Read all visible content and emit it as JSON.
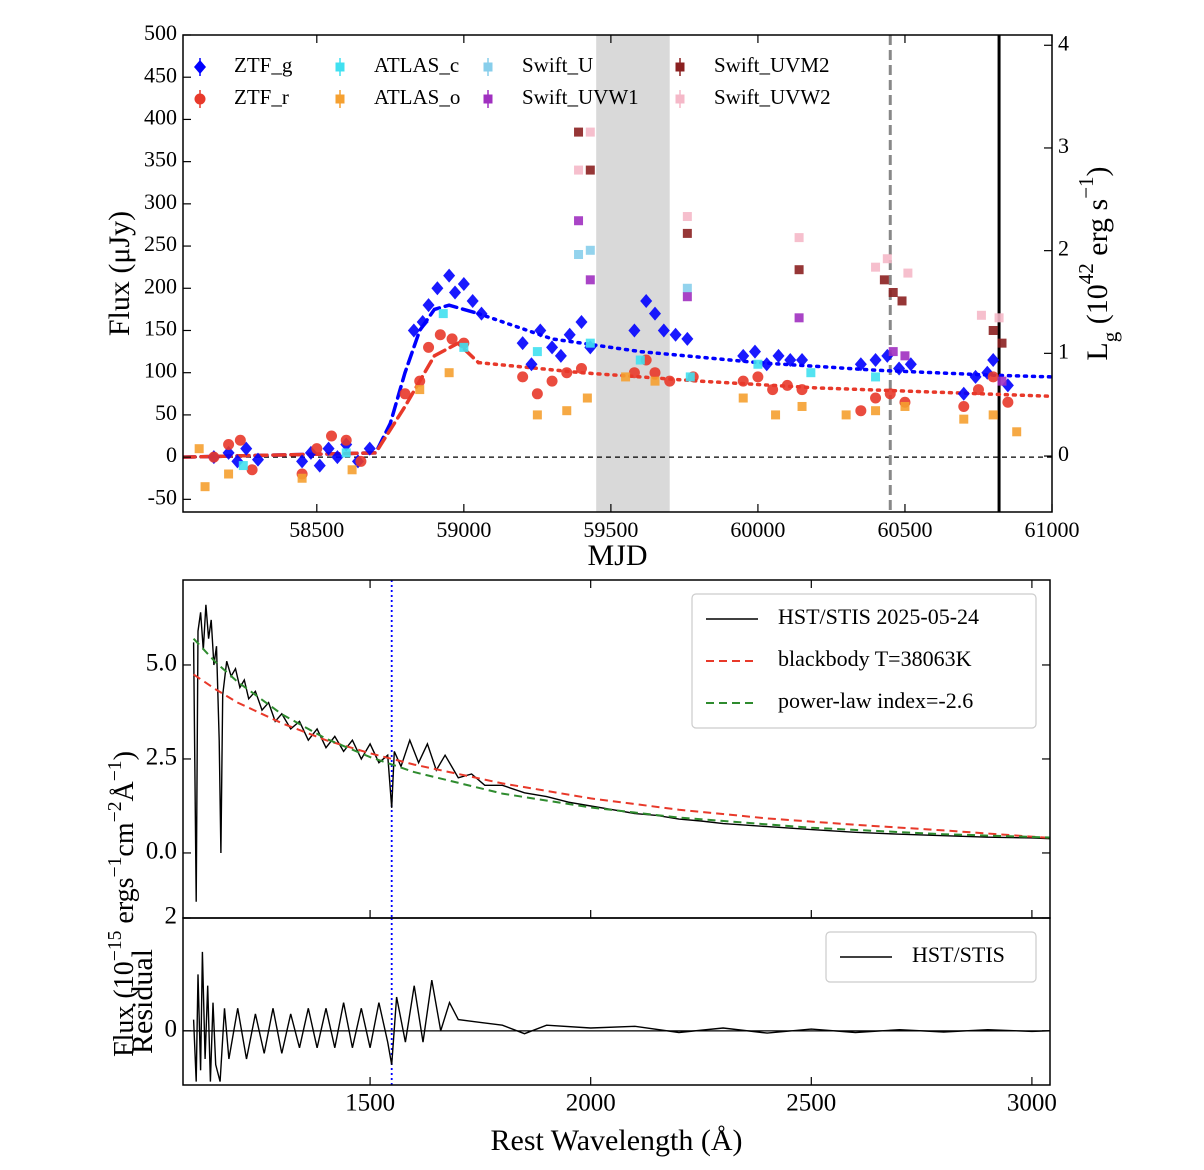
{
  "chart_data": [
    {
      "type": "scatter",
      "xlabel": "MJD",
      "ylabel": "Flux (μJy)",
      "y2label": [
        {
          "text": "L"
        },
        {
          "text": "g",
          "shift": "sub"
        },
        {
          "text": " (10"
        },
        {
          "text": "42",
          "shift": "super"
        },
        {
          "text": " erg s"
        },
        {
          "text": "−1",
          "shift": "super"
        },
        {
          "text": ")"
        }
      ],
      "xlim": [
        58045,
        61000
      ],
      "xticks": [
        58500,
        59000,
        59500,
        60000,
        60500,
        61000
      ],
      "ylim": [
        -65,
        500
      ],
      "yticks": [
        -50,
        0,
        50,
        100,
        150,
        200,
        250,
        300,
        350,
        400,
        450,
        500
      ],
      "y2lim": [
        -0.545,
        4.1
      ],
      "y2ticks": [
        0,
        1,
        2,
        3,
        4
      ],
      "hline": 0,
      "shaded_region": [
        59450,
        59700
      ],
      "vlines": [
        {
          "x": 60450,
          "color": "#888888",
          "style": "dashed"
        },
        {
          "x": 60820,
          "color": "#000000",
          "style": "solid"
        }
      ],
      "legend": "upper left",
      "legend_ncol": 4,
      "series": [
        {
          "name": "ZTF_g",
          "color": "#0000ff",
          "marker": "diamond",
          "x": [
            58150,
            58200,
            58230,
            58260,
            58300,
            58450,
            58480,
            58510,
            58540,
            58570,
            58600,
            58640,
            58680,
            58830,
            58860,
            58880,
            58910,
            58950,
            58970,
            59000,
            59030,
            59060,
            59200,
            59230,
            59260,
            59300,
            59330,
            59360,
            59400,
            59430,
            59580,
            59620,
            59650,
            59680,
            59720,
            59760,
            59950,
            59990,
            60030,
            60070,
            60110,
            60150,
            60350,
            60400,
            60440,
            60480,
            60520,
            60700,
            60740,
            60780,
            60800,
            60850
          ],
          "values": [
            0,
            5,
            -5,
            10,
            -3,
            -5,
            5,
            -10,
            10,
            0,
            15,
            -5,
            10,
            150,
            160,
            180,
            200,
            215,
            195,
            205,
            185,
            170,
            135,
            110,
            150,
            130,
            120,
            145,
            160,
            130,
            150,
            185,
            170,
            150,
            145,
            140,
            120,
            125,
            110,
            120,
            115,
            115,
            110,
            115,
            120,
            105,
            110,
            75,
            95,
            100,
            115,
            85
          ]
        },
        {
          "name": "ZTF_r",
          "color": "#e8392a",
          "marker": "circle",
          "x": [
            58150,
            58200,
            58240,
            58280,
            58450,
            58500,
            58550,
            58600,
            58650,
            58800,
            58850,
            58880,
            58920,
            58960,
            59000,
            59200,
            59250,
            59300,
            59350,
            59400,
            59580,
            59620,
            59650,
            59700,
            59780,
            59950,
            60000,
            60050,
            60100,
            60150,
            60350,
            60400,
            60450,
            60500,
            60700,
            60750,
            60800,
            60850
          ],
          "values": [
            0,
            15,
            20,
            -15,
            -20,
            10,
            25,
            20,
            -5,
            75,
            90,
            130,
            145,
            140,
            135,
            95,
            75,
            90,
            100,
            105,
            100,
            115,
            100,
            90,
            95,
            90,
            95,
            80,
            85,
            80,
            55,
            70,
            75,
            65,
            60,
            80,
            95,
            65
          ]
        },
        {
          "name": "ATLAS_c",
          "color": "#40e0f0",
          "marker": "square",
          "x": [
            58250,
            58600,
            58930,
            59000,
            59250,
            59430,
            59600,
            59770,
            60000,
            60180,
            60400
          ],
          "values": [
            -10,
            5,
            170,
            130,
            125,
            135,
            115,
            95,
            110,
            100,
            95
          ]
        },
        {
          "name": "ATLAS_o",
          "color": "#f5a030",
          "marker": "square",
          "x": [
            58100,
            58120,
            58200,
            58450,
            58620,
            58850,
            58950,
            59250,
            59350,
            59420,
            59550,
            59650,
            59950,
            60060,
            60150,
            60300,
            60400,
            60500,
            60700,
            60800,
            60880
          ],
          "values": [
            10,
            -35,
            -20,
            -25,
            -15,
            80,
            100,
            50,
            55,
            70,
            95,
            90,
            70,
            50,
            60,
            50,
            55,
            60,
            45,
            50,
            30
          ]
        },
        {
          "name": "Swift_U",
          "color": "#87ceeb",
          "marker": "square",
          "x": [
            59390,
            59430,
            59760
          ],
          "values": [
            240,
            245,
            200
          ]
        },
        {
          "name": "Swift_UVW1",
          "color": "#a030c0",
          "marker": "square",
          "x": [
            59390,
            59430,
            59760,
            60140,
            60460,
            60500,
            60830
          ],
          "values": [
            280,
            210,
            190,
            165,
            125,
            120,
            90
          ]
        },
        {
          "name": "Swift_UVM2",
          "color": "#8b2020",
          "marker": "square",
          "x": [
            59390,
            59430,
            59760,
            60140,
            60430,
            60460,
            60490,
            60800,
            60830
          ],
          "values": [
            385,
            340,
            265,
            222,
            210,
            195,
            185,
            150,
            135
          ]
        },
        {
          "name": "Swift_UVW2",
          "color": "#f5b8c8",
          "marker": "square",
          "x": [
            59390,
            59430,
            59760,
            60140,
            60400,
            60440,
            60510,
            60760,
            60820
          ],
          "values": [
            340,
            385,
            285,
            260,
            225,
            235,
            218,
            168,
            165
          ]
        }
      ],
      "fits": [
        {
          "color": "#0000ff",
          "style": "dashed",
          "x": [
            58045,
            58700,
            58750,
            58800,
            58850,
            58900,
            58950,
            59050
          ],
          "values": [
            0,
            5,
            40,
            100,
            150,
            175,
            180,
            170
          ]
        },
        {
          "color": "#0000ff",
          "style": "dotted",
          "x": [
            59050,
            59300,
            59600,
            60000,
            60400,
            60800,
            61000
          ],
          "values": [
            170,
            140,
            125,
            112,
            103,
            97,
            95
          ]
        },
        {
          "color": "#e8392a",
          "style": "dashed",
          "x": [
            58045,
            58700,
            58800,
            58900,
            58980,
            59050
          ],
          "values": [
            0,
            5,
            60,
            120,
            135,
            112
          ]
        },
        {
          "color": "#e8392a",
          "style": "dotted",
          "x": [
            59050,
            59400,
            59800,
            60200,
            60600,
            61000
          ],
          "values": [
            112,
            100,
            90,
            82,
            77,
            72
          ]
        }
      ]
    },
    {
      "type": "line",
      "ylabel": [
        {
          "text": "Flux (10"
        },
        {
          "text": "−15",
          "shift": "super"
        },
        {
          "text": " ergs"
        },
        {
          "text": "−1",
          "shift": "super"
        },
        {
          "text": "cm"
        },
        {
          "text": "−2",
          "shift": "super"
        },
        {
          "text": "Å"
        },
        {
          "text": "−1",
          "shift": "super"
        },
        {
          "text": ")"
        }
      ],
      "xlim": [
        1076,
        3041
      ],
      "ylim": [
        -1.73,
        7.26
      ],
      "yticks": [
        {
          "value": 0,
          "label": "0.0"
        },
        2.5,
        {
          "value": 5,
          "label": "5.0"
        }
      ],
      "vline": 1549,
      "vline_color": "#0000ff",
      "legend": "upper right",
      "series": [
        {
          "name": "HST/STIS 2025-05-24",
          "color": "#000000",
          "style": "solid",
          "x": [
            1100,
            1106,
            1110,
            1116,
            1122,
            1128,
            1134,
            1140,
            1146,
            1152,
            1158,
            1162,
            1166,
            1175,
            1185,
            1195,
            1205,
            1215,
            1225,
            1240,
            1255,
            1270,
            1285,
            1300,
            1320,
            1340,
            1360,
            1380,
            1400,
            1420,
            1440,
            1460,
            1480,
            1500,
            1520,
            1540,
            1549,
            1555,
            1570,
            1590,
            1610,
            1630,
            1650,
            1670,
            1700,
            1730,
            1760,
            1800,
            1850,
            1900,
            1950,
            2000,
            2050,
            2100,
            2150,
            2200,
            2250,
            2300,
            2400,
            2500,
            2600,
            2700,
            2800,
            2900,
            3000,
            3040
          ],
          "values": [
            5.6,
            -1.3,
            5.9,
            6.4,
            5.4,
            6.6,
            5.7,
            6.2,
            5.0,
            5.5,
            3.0,
            0.0,
            4.2,
            5.1,
            4.7,
            4.9,
            4.4,
            4.6,
            4.1,
            4.3,
            3.8,
            4.0,
            3.5,
            3.7,
            3.3,
            3.5,
            3.0,
            3.3,
            2.8,
            3.1,
            2.7,
            3.0,
            2.5,
            2.9,
            2.4,
            2.6,
            1.2,
            2.7,
            2.3,
            3.0,
            2.4,
            2.9,
            2.2,
            2.6,
            2.0,
            2.1,
            1.8,
            1.8,
            1.6,
            1.5,
            1.35,
            1.25,
            1.15,
            1.05,
            1.0,
            0.9,
            0.85,
            0.78,
            0.7,
            0.62,
            0.55,
            0.5,
            0.46,
            0.42,
            0.4,
            0.38
          ]
        },
        {
          "name": "blackbody T=38063K",
          "color": "#e8392a",
          "style": "dashed",
          "x": [
            1100,
            1150,
            1200,
            1300,
            1400,
            1500,
            1600,
            1700,
            1800,
            2000,
            2200,
            2400,
            2600,
            2800,
            3040
          ],
          "values": [
            4.75,
            4.35,
            4.0,
            3.45,
            3.0,
            2.65,
            2.35,
            2.1,
            1.85,
            1.45,
            1.15,
            0.92,
            0.75,
            0.6,
            0.4
          ]
        },
        {
          "name": "power-law index=-2.6",
          "color": "#2e8b2e",
          "style": "dashed",
          "x": [
            1100,
            1150,
            1200,
            1300,
            1400,
            1500,
            1600,
            1800,
            2000,
            2200,
            2500,
            2800,
            3040
          ],
          "values": [
            5.7,
            5.07,
            4.55,
            3.69,
            3.04,
            2.55,
            2.15,
            1.58,
            1.21,
            0.94,
            0.67,
            0.5,
            0.41
          ]
        }
      ]
    },
    {
      "type": "line",
      "xlabel": "Rest Wavelength (Å)",
      "ylabel": "Residual",
      "xlim": [
        1076,
        3041
      ],
      "xticks": [
        1500,
        2000,
        2500,
        3000
      ],
      "ylim": [
        -0.96,
        2
      ],
      "yticks": [
        0,
        2
      ],
      "hline": 0,
      "vline": 1549,
      "vline_color": "#0000ff",
      "legend": "upper right",
      "series": [
        {
          "name": "HST/STIS",
          "color": "#000000",
          "style": "solid",
          "x": [
            1100,
            1106,
            1110,
            1116,
            1120,
            1126,
            1132,
            1138,
            1144,
            1150,
            1160,
            1170,
            1180,
            1200,
            1220,
            1240,
            1260,
            1280,
            1300,
            1320,
            1340,
            1360,
            1380,
            1400,
            1420,
            1440,
            1460,
            1480,
            1500,
            1520,
            1540,
            1549,
            1560,
            1580,
            1600,
            1620,
            1640,
            1660,
            1680,
            1700,
            1750,
            1800,
            1850,
            1900,
            2000,
            2100,
            2200,
            2300,
            2400,
            2500,
            2600,
            2700,
            2800,
            2900,
            3000,
            3040
          ],
          "values": [
            0.2,
            -0.9,
            1.0,
            -0.7,
            1.4,
            -0.5,
            0.8,
            -0.9,
            0.5,
            -0.6,
            -0.9,
            0.4,
            -0.5,
            0.4,
            -0.5,
            0.3,
            -0.4,
            0.4,
            -0.4,
            0.3,
            -0.3,
            0.4,
            -0.3,
            0.4,
            -0.3,
            0.5,
            -0.3,
            0.4,
            -0.3,
            0.5,
            -0.2,
            -0.6,
            0.6,
            -0.2,
            0.8,
            -0.2,
            0.9,
            0.0,
            0.5,
            0.2,
            0.15,
            0.1,
            -0.05,
            0.1,
            0.05,
            0.08,
            -0.03,
            0.05,
            -0.04,
            0.03,
            -0.03,
            0.02,
            -0.02,
            0.02,
            -0.01,
            0.0
          ]
        }
      ]
    }
  ]
}
